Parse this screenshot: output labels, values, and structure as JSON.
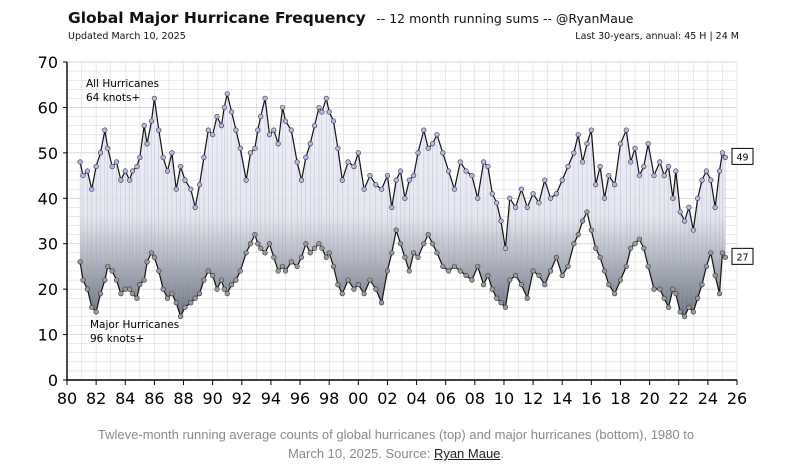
{
  "header": {
    "title": "Global Major Hurricane Frequency",
    "subtitle": "-- 12 month running sums -- @RyanMaue",
    "updated": "Updated March 10, 2025",
    "summary": "Last 30-years, annual:  45 H | 24 M"
  },
  "caption": {
    "text": "Twleve-month running average counts of global hurricanes (top) and major hurricanes (bottom), 1980 to March 10, 2025. Source:",
    "link": "Ryan Maue",
    "end": "."
  },
  "colors": {
    "background": "#ffffff",
    "grid": "#d4d4d4",
    "all_line": "#111111",
    "all_marker_fill": "#b3b6e6",
    "major_marker_fill": "#9a9a9a",
    "fill_top": "#eeeefa",
    "fill_bottom": "#5d6673"
  },
  "chart_data": {
    "type": "line",
    "x_unit": "year",
    "xlim": [
      1980,
      2026
    ],
    "ylim": [
      0,
      70
    ],
    "yticks": [
      0,
      10,
      20,
      30,
      40,
      50,
      60,
      70
    ],
    "xtick_values": [
      1980,
      1982,
      1984,
      1986,
      1988,
      1990,
      1992,
      1994,
      1996,
      1998,
      2000,
      2002,
      2004,
      2006,
      2008,
      2010,
      2012,
      2014,
      2016,
      2018,
      2020,
      2022,
      2024,
      2026
    ],
    "xtick_labels": [
      "80",
      "82",
      "84",
      "86",
      "88",
      "90",
      "92",
      "94",
      "96",
      "98",
      "00",
      "02",
      "04",
      "06",
      "08",
      "10",
      "12",
      "14",
      "16",
      "18",
      "20",
      "22",
      "24",
      "26"
    ],
    "grid": true,
    "series": [
      {
        "name": "All Hurricanes",
        "label_lines": [
          "All Hurricanes",
          "64 knots+"
        ],
        "end_label": "49",
        "x": [
          1980.9,
          1981.1,
          1981.4,
          1981.7,
          1982.0,
          1982.3,
          1982.6,
          1982.8,
          1983.1,
          1983.4,
          1983.7,
          1984.0,
          1984.3,
          1984.5,
          1984.8,
          1985.0,
          1985.3,
          1985.5,
          1985.8,
          1986.0,
          1986.3,
          1986.6,
          1986.9,
          1987.2,
          1987.5,
          1987.8,
          1988.1,
          1988.5,
          1988.8,
          1989.1,
          1989.4,
          1989.7,
          1990.0,
          1990.3,
          1990.6,
          1990.8,
          1991.0,
          1991.3,
          1991.6,
          1991.9,
          1992.3,
          1992.6,
          1992.9,
          1993.1,
          1993.3,
          1993.6,
          1993.9,
          1994.2,
          1994.5,
          1994.8,
          1995.0,
          1995.4,
          1995.8,
          1996.1,
          1996.4,
          1996.7,
          1997.0,
          1997.3,
          1997.5,
          1997.8,
          1998.0,
          1998.3,
          1998.6,
          1998.9,
          1999.3,
          1999.7,
          2000.0,
          2000.4,
          2000.8,
          2001.2,
          2001.6,
          2002.0,
          2002.3,
          2002.6,
          2002.9,
          2003.2,
          2003.5,
          2003.8,
          2004.1,
          2004.5,
          2004.8,
          2005.1,
          2005.4,
          2005.8,
          2006.2,
          2006.6,
          2007.0,
          2007.4,
          2007.8,
          2008.2,
          2008.6,
          2008.9,
          2009.2,
          2009.5,
          2009.8,
          2010.1,
          2010.4,
          2010.8,
          2011.2,
          2011.6,
          2012.0,
          2012.4,
          2012.8,
          2013.2,
          2013.6,
          2014.0,
          2014.4,
          2014.8,
          2015.1,
          2015.4,
          2015.7,
          2016.0,
          2016.3,
          2016.6,
          2016.9,
          2017.2,
          2017.6,
          2018.0,
          2018.4,
          2018.7,
          2019.0,
          2019.3,
          2019.6,
          2019.9,
          2020.3,
          2020.7,
          2021.0,
          2021.3,
          2021.6,
          2021.8,
          2022.1,
          2022.4,
          2022.7,
          2023.0,
          2023.3,
          2023.6,
          2023.9,
          2024.2,
          2024.5,
          2024.8,
          2025.0,
          2025.2
        ],
        "values": [
          48,
          45,
          46,
          42,
          47,
          50,
          55,
          51,
          47,
          48,
          44,
          46,
          44,
          46,
          47,
          49,
          56,
          52,
          57,
          62,
          55,
          49,
          46,
          50,
          42,
          47,
          44,
          42,
          38,
          43,
          49,
          55,
          54,
          58,
          56,
          60,
          63,
          59,
          55,
          51,
          44,
          50,
          51,
          55,
          58,
          62,
          54,
          55,
          52,
          60,
          57,
          55,
          48,
          44,
          49,
          52,
          56,
          60,
          59,
          62,
          59,
          57,
          51,
          44,
          48,
          47,
          50,
          42,
          45,
          43,
          42,
          45,
          38,
          44,
          46,
          40,
          44,
          45,
          50,
          55,
          51,
          52,
          54,
          50,
          46,
          42,
          48,
          46,
          45,
          40,
          48,
          47,
          41,
          39,
          35,
          29,
          40,
          38,
          42,
          38,
          41,
          39,
          44,
          40,
          41,
          44,
          47,
          50,
          54,
          48,
          52,
          55,
          43,
          47,
          40,
          45,
          43,
          52,
          55,
          48,
          51,
          45,
          47,
          52,
          45,
          48,
          45,
          47,
          40,
          46,
          37,
          35,
          38,
          33,
          40,
          44,
          46,
          44,
          38,
          46,
          50,
          49
        ]
      },
      {
        "name": "Major Hurricanes",
        "label_lines": [
          "Major Hurricanes",
          "96 knots+"
        ],
        "end_label": "27",
        "x": [
          1980.9,
          1981.1,
          1981.4,
          1981.7,
          1982.0,
          1982.3,
          1982.6,
          1982.8,
          1983.1,
          1983.4,
          1983.7,
          1984.0,
          1984.3,
          1984.5,
          1984.8,
          1985.0,
          1985.3,
          1985.5,
          1985.8,
          1986.0,
          1986.3,
          1986.6,
          1986.9,
          1987.2,
          1987.5,
          1987.8,
          1988.1,
          1988.5,
          1988.8,
          1989.1,
          1989.4,
          1989.7,
          1990.0,
          1990.3,
          1990.6,
          1990.8,
          1991.0,
          1991.3,
          1991.6,
          1991.9,
          1992.3,
          1992.6,
          1992.9,
          1993.1,
          1993.3,
          1993.6,
          1993.9,
          1994.2,
          1994.5,
          1994.8,
          1995.0,
          1995.4,
          1995.8,
          1996.1,
          1996.4,
          1996.7,
          1997.0,
          1997.3,
          1997.5,
          1997.8,
          1998.0,
          1998.3,
          1998.6,
          1998.9,
          1999.3,
          1999.7,
          2000.0,
          2000.4,
          2000.8,
          2001.2,
          2001.6,
          2002.0,
          2002.3,
          2002.6,
          2002.9,
          2003.2,
          2003.5,
          2003.8,
          2004.1,
          2004.5,
          2004.8,
          2005.1,
          2005.4,
          2005.8,
          2006.2,
          2006.6,
          2007.0,
          2007.4,
          2007.8,
          2008.2,
          2008.6,
          2008.9,
          2009.2,
          2009.5,
          2009.8,
          2010.1,
          2010.4,
          2010.8,
          2011.2,
          2011.6,
          2012.0,
          2012.4,
          2012.8,
          2013.2,
          2013.6,
          2014.0,
          2014.4,
          2014.8,
          2015.1,
          2015.4,
          2015.7,
          2016.0,
          2016.3,
          2016.6,
          2016.9,
          2017.2,
          2017.6,
          2018.0,
          2018.4,
          2018.7,
          2019.0,
          2019.3,
          2019.6,
          2019.9,
          2020.3,
          2020.7,
          2021.0,
          2021.3,
          2021.6,
          2021.8,
          2022.1,
          2022.4,
          2022.7,
          2023.0,
          2023.3,
          2023.6,
          2023.9,
          2024.2,
          2024.5,
          2024.8,
          2025.0,
          2025.2
        ],
        "values": [
          26,
          22,
          20,
          16,
          15,
          19,
          22,
          25,
          24,
          22,
          19,
          20,
          20,
          19,
          18,
          21,
          22,
          26,
          28,
          27,
          24,
          20,
          18,
          19,
          17,
          14,
          16,
          17,
          18,
          19,
          22,
          24,
          23,
          20,
          22,
          20,
          19,
          21,
          22,
          24,
          28,
          30,
          32,
          30,
          29,
          28,
          30,
          27,
          24,
          25,
          24,
          26,
          25,
          27,
          30,
          28,
          29,
          30,
          29,
          27,
          28,
          25,
          21,
          19,
          22,
          20,
          21,
          19,
          22,
          20,
          17,
          24,
          28,
          33,
          30,
          27,
          24,
          28,
          27,
          30,
          32,
          30,
          28,
          25,
          24,
          25,
          24,
          23,
          22,
          25,
          21,
          23,
          20,
          18,
          17,
          16,
          22,
          23,
          21,
          18,
          24,
          23,
          21,
          24,
          27,
          23,
          25,
          30,
          32,
          35,
          37,
          33,
          29,
          27,
          24,
          21,
          19,
          22,
          25,
          29,
          30,
          31,
          29,
          25,
          20,
          20,
          18,
          16,
          20,
          19,
          15,
          14,
          16,
          15,
          18,
          21,
          25,
          28,
          23,
          19,
          28,
          27
        ]
      }
    ]
  }
}
